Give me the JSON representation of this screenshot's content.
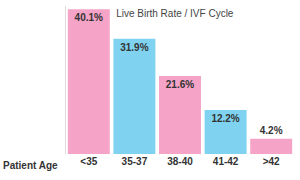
{
  "chart_data": {
    "type": "bar",
    "title": "Live Birth Rate / IVF Cycle",
    "xlabel": "Patient Age",
    "categories": [
      "<35",
      "35-37",
      "38-40",
      "41-42",
      ">42"
    ],
    "values": [
      40.1,
      31.9,
      21.6,
      12.2,
      4.2
    ],
    "value_labels": [
      "40.1%",
      "31.9%",
      "21.6%",
      "12.2%",
      "4.2%"
    ],
    "colors": [
      "#f5a3c7",
      "#7fd3f1",
      "#f5a3c7",
      "#7fd3f1",
      "#f5a3c7"
    ],
    "ylim": [
      0,
      41
    ],
    "data_labels": true,
    "tick_labels": "x",
    "grid": false
  }
}
